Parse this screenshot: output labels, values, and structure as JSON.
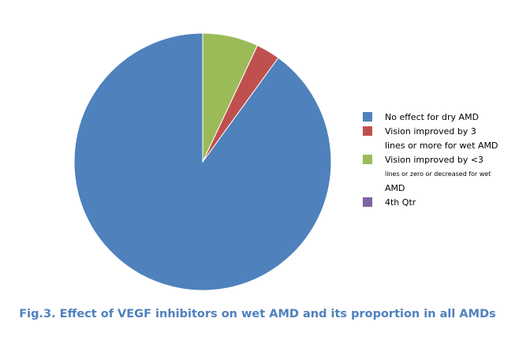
{
  "chart_data": {
    "type": "pie",
    "categories": [
      "No effect for dry AMD",
      "Vision improved by 3 lines or more for wet AMD",
      "Vision improved by <3 lines or zero or decreased for wet AMD",
      "4th Qtr"
    ],
    "values": [
      90,
      3,
      7,
      0
    ],
    "colors": [
      "#4f81bd",
      "#c0504d",
      "#9bbb59",
      "#8064a2"
    ],
    "legend_placement": "right",
    "legend": [
      {
        "lines": [
          "No effect for dry AMD"
        ]
      },
      {
        "lines": [
          "Vision improved by 3",
          "lines or more for wet AMD"
        ]
      },
      {
        "lines": [
          "Vision improved by <3",
          "lines or zero or decreased for wet",
          "AMD"
        ]
      },
      {
        "lines": [
          "4th Qtr"
        ]
      }
    ],
    "caption": "Fig.3. Effect of VEGF inhibitors on wet AMD and its proportion in all AMDs"
  }
}
